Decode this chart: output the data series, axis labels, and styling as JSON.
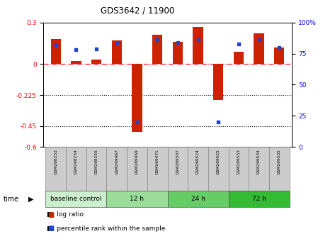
{
  "title": "GDS3642 / 11900",
  "samples": [
    "GSM268253",
    "GSM268254",
    "GSM268255",
    "GSM269467",
    "GSM269469",
    "GSM269471",
    "GSM269507",
    "GSM269524",
    "GSM269525",
    "GSM269533",
    "GSM269534",
    "GSM269535"
  ],
  "log_ratio": [
    0.18,
    0.02,
    0.03,
    0.17,
    -0.49,
    0.21,
    0.16,
    0.27,
    -0.26,
    0.09,
    0.22,
    0.12
  ],
  "percentile_rank": [
    82,
    78,
    79,
    84,
    20,
    86,
    84,
    86,
    20,
    83,
    86,
    80
  ],
  "groups": [
    {
      "label": "baseline control",
      "start": 0,
      "end": 3
    },
    {
      "label": "12 h",
      "start": 3,
      "end": 6
    },
    {
      "label": "24 h",
      "start": 6,
      "end": 9
    },
    {
      "label": "72 h",
      "start": 9,
      "end": 12
    }
  ],
  "group_colors": [
    "#cceecc",
    "#99dd99",
    "#66cc66",
    "#33bb33"
  ],
  "ylim_left": [
    -0.6,
    0.3
  ],
  "ylim_right": [
    0,
    100
  ],
  "yticks_left": [
    0.3,
    0.0,
    -0.225,
    -0.45,
    -0.6
  ],
  "ytick_labels_left": [
    "0.3",
    "0",
    "-0.225",
    "-0.45",
    "-0.6"
  ],
  "yticks_right": [
    100,
    75,
    50,
    25,
    0
  ],
  "ytick_labels_right": [
    "100%",
    "75",
    "50",
    "25",
    "0"
  ],
  "bar_color_red": "#cc2200",
  "bar_color_blue": "#2244cc",
  "bg_color": "#ffffff",
  "legend_red": "log ratio",
  "legend_blue": "percentile rank within the sample"
}
